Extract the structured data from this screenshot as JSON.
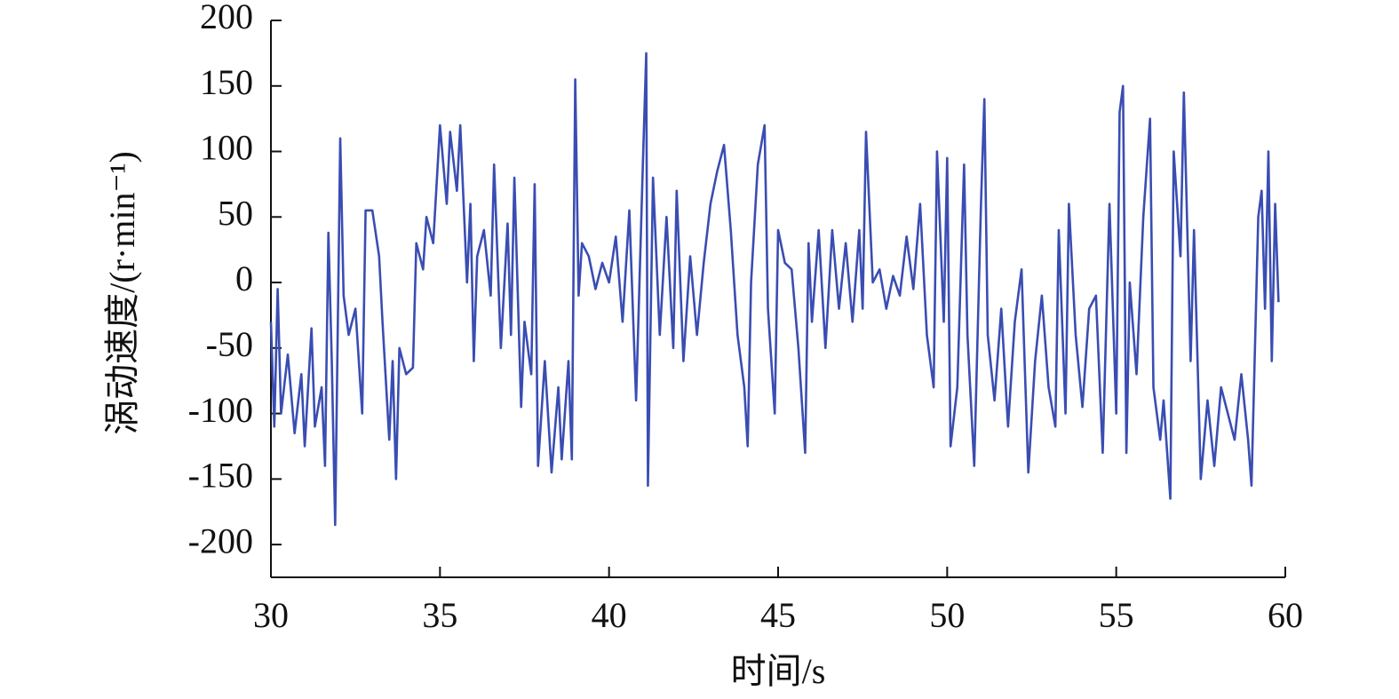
{
  "chart_data": {
    "type": "line",
    "xlabel": "时间/s",
    "ylabel": "涡动速度/(r·min⁻¹)",
    "xlim": [
      30,
      60
    ],
    "xticks": [
      30,
      35,
      40,
      45,
      50,
      55,
      60
    ],
    "ylim": [
      -225,
      200
    ],
    "yticks": [
      -200,
      -150,
      -100,
      -50,
      0,
      50,
      100,
      150,
      200
    ],
    "series": [
      {
        "color": "#3a4db2",
        "x": [
          30.0,
          30.1,
          30.2,
          30.3,
          30.5,
          30.7,
          30.9,
          31.0,
          31.2,
          31.3,
          31.5,
          31.6,
          31.7,
          31.8,
          31.9,
          32.0,
          32.05,
          32.15,
          32.3,
          32.5,
          32.6,
          32.7,
          32.8,
          33.0,
          33.2,
          33.3,
          33.5,
          33.6,
          33.7,
          33.8,
          34.0,
          34.2,
          34.3,
          34.5,
          34.6,
          34.8,
          35.0,
          35.2,
          35.3,
          35.5,
          35.6,
          35.8,
          35.9,
          36.0,
          36.1,
          36.3,
          36.5,
          36.6,
          36.8,
          37.0,
          37.1,
          37.2,
          37.4,
          37.5,
          37.7,
          37.8,
          37.9,
          38.1,
          38.3,
          38.5,
          38.6,
          38.8,
          38.9,
          39.0,
          39.1,
          39.2,
          39.4,
          39.6,
          39.8,
          40.0,
          40.2,
          40.4,
          40.6,
          40.8,
          41.0,
          41.1,
          41.15,
          41.3,
          41.5,
          41.7,
          41.9,
          42.0,
          42.2,
          42.4,
          42.6,
          42.8,
          43.0,
          43.2,
          43.4,
          43.6,
          43.8,
          44.0,
          44.1,
          44.2,
          44.4,
          44.6,
          44.7,
          44.9,
          45.0,
          45.2,
          45.4,
          45.6,
          45.8,
          45.9,
          46.0,
          46.2,
          46.4,
          46.6,
          46.8,
          47.0,
          47.2,
          47.4,
          47.5,
          47.6,
          47.8,
          48.0,
          48.2,
          48.4,
          48.6,
          48.8,
          49.0,
          49.2,
          49.4,
          49.6,
          49.7,
          49.9,
          50.0,
          50.1,
          50.3,
          50.5,
          50.6,
          50.8,
          51.0,
          51.1,
          51.2,
          51.4,
          51.6,
          51.8,
          52.0,
          52.2,
          52.4,
          52.6,
          52.8,
          53.0,
          53.2,
          53.3,
          53.5,
          53.6,
          53.8,
          54.0,
          54.2,
          54.4,
          54.6,
          54.8,
          54.9,
          55.0,
          55.1,
          55.2,
          55.3,
          55.4,
          55.6,
          55.8,
          56.0,
          56.1,
          56.3,
          56.4,
          56.6,
          56.7,
          56.9,
          57.0,
          57.2,
          57.3,
          57.5,
          57.7,
          57.9,
          58.1,
          58.3,
          58.5,
          58.7,
          58.9,
          59.0,
          59.2,
          59.3,
          59.4,
          59.5,
          59.6,
          59.7,
          59.8
        ],
        "values": [
          -30,
          -110,
          -5,
          -100,
          -55,
          -115,
          -70,
          -125,
          -35,
          -110,
          -80,
          -140,
          38,
          -60,
          -185,
          10,
          110,
          -10,
          -40,
          -20,
          -60,
          -100,
          55,
          55,
          20,
          -30,
          -120,
          -60,
          -150,
          -50,
          -70,
          -65,
          30,
          10,
          50,
          30,
          120,
          60,
          115,
          70,
          120,
          0,
          60,
          -60,
          20,
          40,
          -10,
          90,
          -50,
          45,
          -40,
          80,
          -95,
          -30,
          -70,
          75,
          -140,
          -60,
          -145,
          -80,
          -135,
          -60,
          -135,
          155,
          -10,
          30,
          20,
          -5,
          15,
          0,
          35,
          -30,
          55,
          -90,
          90,
          175,
          -155,
          80,
          -40,
          50,
          -50,
          70,
          -60,
          20,
          -40,
          15,
          60,
          85,
          105,
          40,
          -40,
          -80,
          -125,
          0,
          90,
          120,
          -20,
          -100,
          40,
          15,
          10,
          -50,
          -130,
          30,
          -30,
          40,
          -50,
          40,
          -20,
          30,
          -30,
          40,
          -20,
          115,
          0,
          10,
          -20,
          5,
          -10,
          35,
          -5,
          60,
          -40,
          -80,
          100,
          -30,
          95,
          -125,
          -80,
          90,
          -40,
          -140,
          60,
          140,
          -40,
          -90,
          -20,
          -110,
          -30,
          10,
          -145,
          -60,
          -10,
          -80,
          -110,
          40,
          -100,
          60,
          -40,
          -95,
          -20,
          -10,
          -130,
          60,
          -20,
          -100,
          130,
          150,
          -130,
          0,
          -70,
          50,
          125,
          -80,
          -120,
          -90,
          -165,
          100,
          20,
          145,
          -60,
          40,
          -150,
          -90,
          -140,
          -80,
          -100,
          -120,
          -70,
          -120,
          -155,
          50,
          70,
          -20,
          100,
          -60,
          60,
          -15
        ]
      }
    ]
  }
}
